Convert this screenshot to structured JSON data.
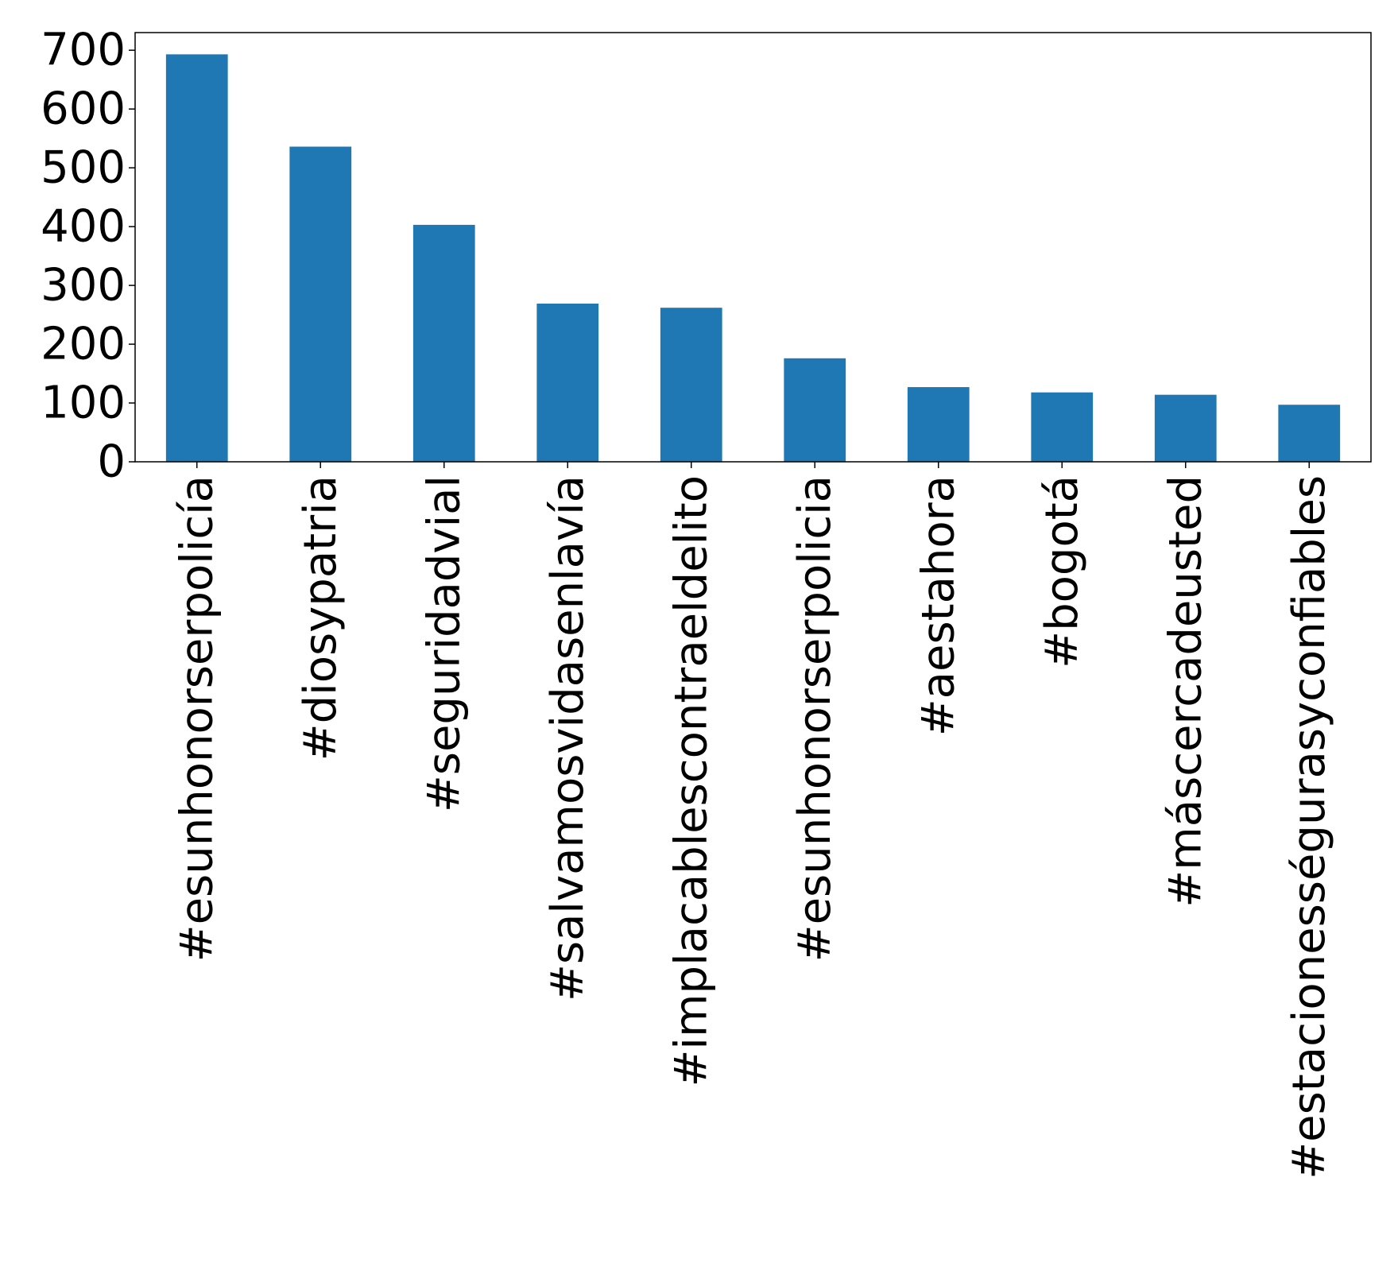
{
  "chart_data": {
    "type": "bar",
    "title": "",
    "xlabel": "",
    "ylabel": "",
    "categories": [
      "#esunhonorserpolicía",
      "#diosypatria",
      "#seguridadvial",
      "#salvamosvidasenlavía",
      "#implacablescontraeldelito",
      "#esunhonorserpolicia",
      "#aestahora",
      "#bogotá",
      "#máscercadeusted",
      "#estacionességurasyconfiables"
    ],
    "values": [
      693,
      536,
      403,
      269,
      262,
      176,
      127,
      118,
      114,
      97
    ],
    "ylim": [
      0,
      730
    ],
    "yticks": [
      0,
      100,
      200,
      300,
      400,
      500,
      600,
      700
    ],
    "bar_color": "#1f77b4",
    "grid": false,
    "legend": "none"
  }
}
